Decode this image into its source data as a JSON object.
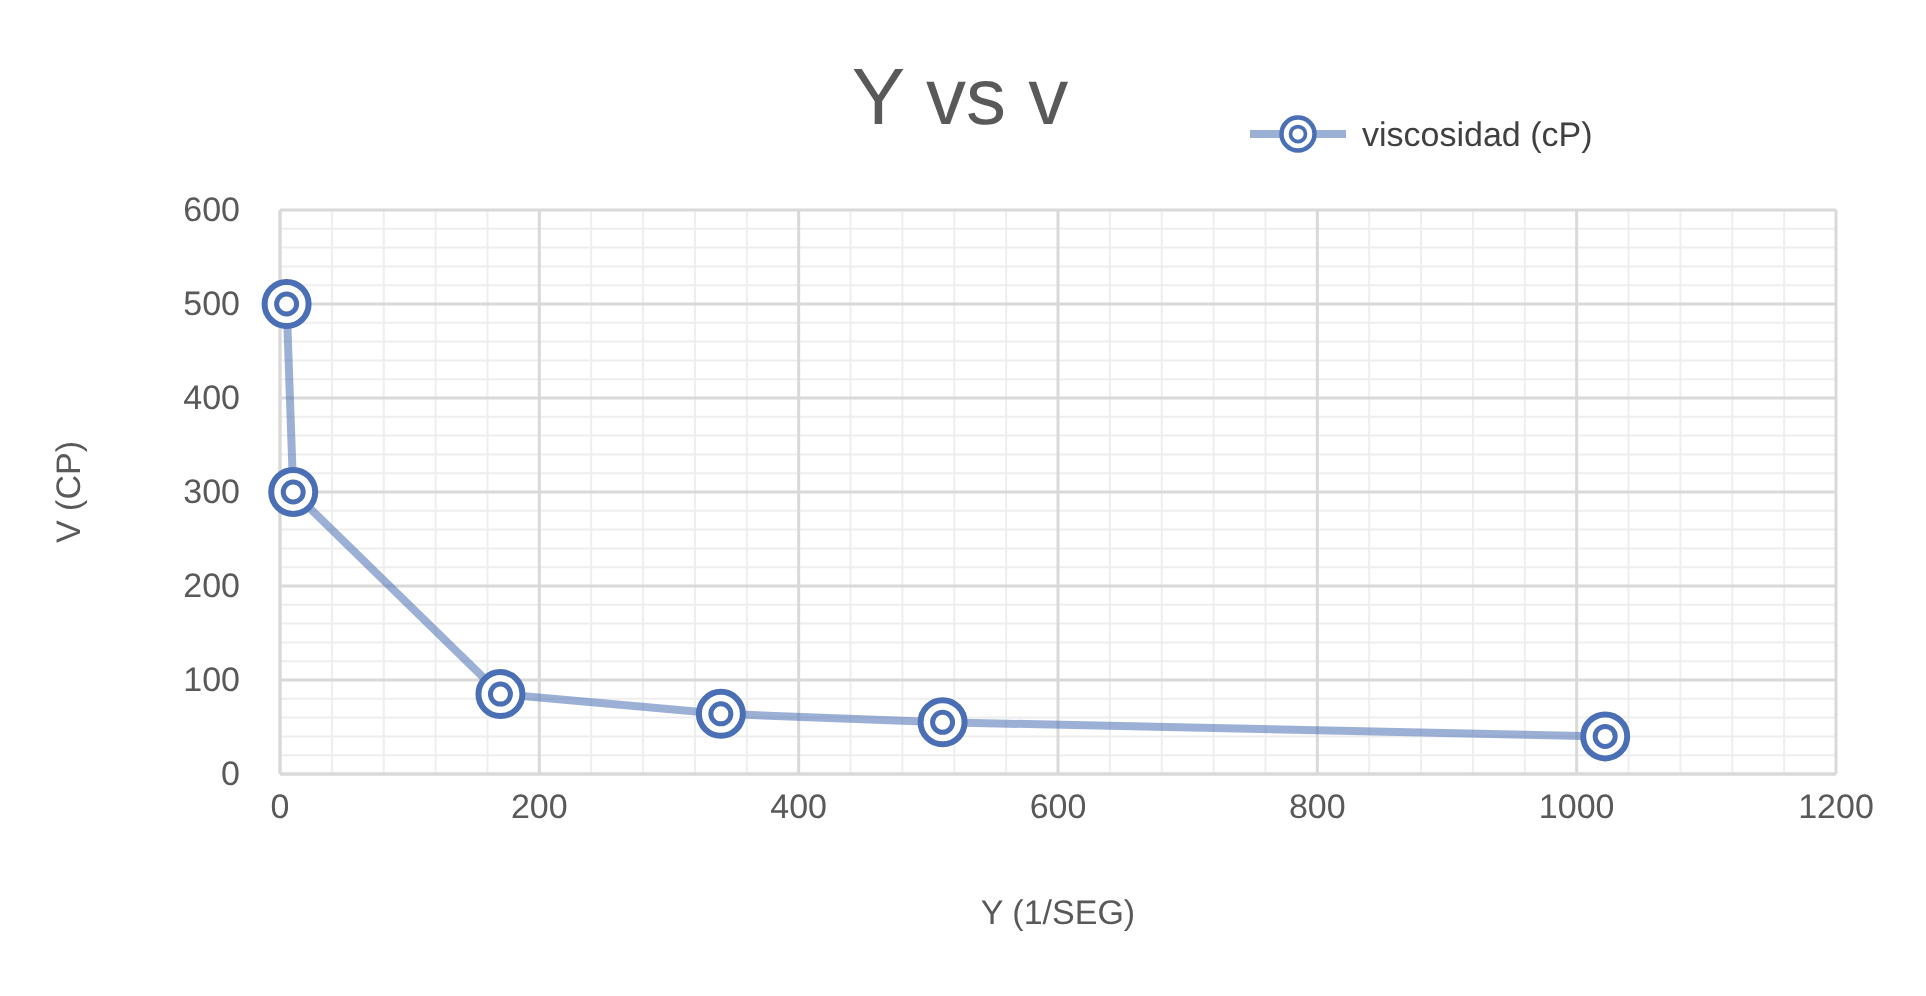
{
  "chart_data": {
    "type": "line",
    "title": "Y vs v",
    "xlabel": "Y (1/SEG)",
    "ylabel": "V (CP)",
    "x": [
      5.1,
      10.2,
      170,
      340,
      511,
      1022
    ],
    "series": [
      {
        "name": "viscosidad (cP)",
        "color": "#4a6fb5",
        "values": [
          500,
          300,
          85,
          64,
          55,
          40
        ]
      }
    ],
    "xlim": [
      0,
      1200
    ],
    "xticks": [
      0,
      200,
      400,
      600,
      800,
      1000,
      1200
    ],
    "ylim": [
      0,
      600
    ],
    "yticks": [
      0,
      100,
      200,
      300,
      400,
      500,
      600
    ],
    "grid": true,
    "legend": "top right",
    "marker": "circle",
    "line_style": "solid"
  }
}
